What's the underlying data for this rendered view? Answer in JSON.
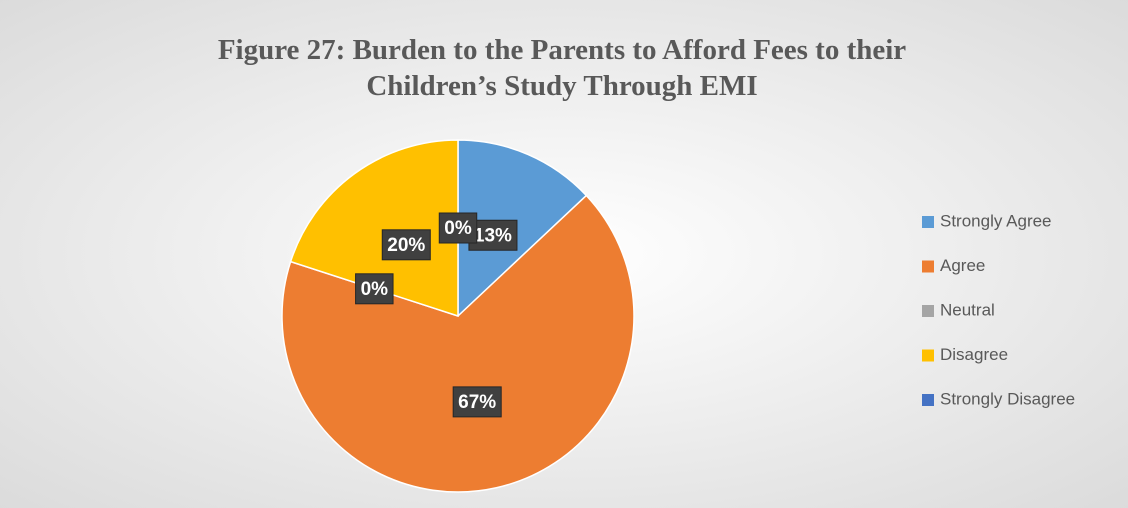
{
  "chart_data": {
    "type": "pie",
    "title": "Figure 27: Burden to the Parents to Afford Fees to their Children’s Study Through EMI",
    "categories": [
      "Strongly Agree",
      "Agree",
      "Neutral",
      "Disagree",
      "Strongly Disagree"
    ],
    "values": [
      13,
      67,
      0,
      20,
      0
    ],
    "value_labels": [
      "13%",
      "67%",
      "0%",
      "20%",
      "0%"
    ],
    "colors": [
      "#5b9bd5",
      "#ed7d31",
      "#a5a5a5",
      "#ffc000",
      "#4472c4"
    ],
    "legend": "right"
  }
}
